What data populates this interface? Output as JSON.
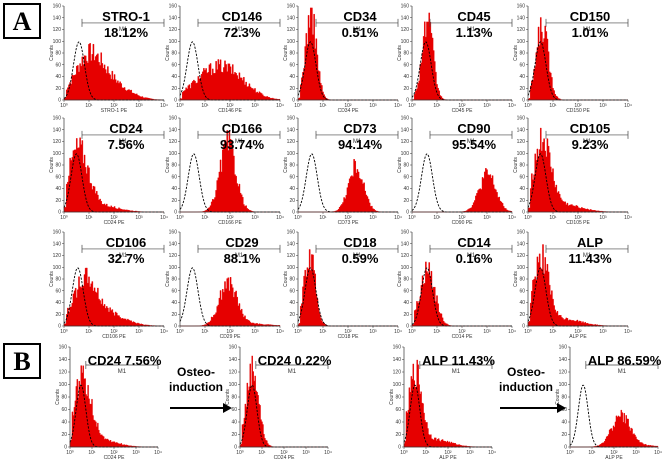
{
  "figure": {
    "panel_a_label": "A",
    "panel_b_label": "B",
    "gate_label": "M1",
    "colors": {
      "sample_fill": "#e60000",
      "control_line": "#000000",
      "gate_line": "#444444"
    }
  },
  "chart_data": [
    {
      "type": "histogram-grid",
      "panel": "A",
      "description": "Flow cytometry histograms, marker (red fill) vs isotype control (dashed line), 3 rows x 5 columns",
      "x_scale": "log",
      "xlim": [
        1,
        10000
      ],
      "x_ticks": [
        "10⁰",
        "10¹",
        "10²",
        "10³",
        "10⁴"
      ],
      "y_ticks": [
        "0",
        "20",
        "40",
        "60",
        "80",
        "100",
        "120",
        "140",
        "160"
      ],
      "ylabel": "Counts",
      "plots": [
        {
          "marker": "STRO-1",
          "pct": "18.12%",
          "xlabel": "STRO-1 PE",
          "peak_log": 0.95,
          "peak_width": 0.55,
          "peak_height": 0.42,
          "ctrl_log": 0.6,
          "tail": 0.4
        },
        {
          "marker": "CD146",
          "pct": "72.3%",
          "xlabel": "CD146 PE",
          "peak_log": 1.3,
          "peak_width": 0.8,
          "peak_height": 0.28,
          "ctrl_log": 0.5,
          "tail": 0.5
        },
        {
          "marker": "CD34",
          "pct": "0.51%",
          "xlabel": "CD34 PE",
          "peak_log": 0.5,
          "peak_width": 0.22,
          "peak_height": 0.92,
          "ctrl_log": 0.5,
          "tail": 0.0
        },
        {
          "marker": "CD45",
          "pct": "1.13%",
          "xlabel": "CD45 PE",
          "peak_log": 0.6,
          "peak_width": 0.22,
          "peak_height": 0.82,
          "ctrl_log": 0.55,
          "tail": 0.0
        },
        {
          "marker": "CD150",
          "pct": "1.01%",
          "xlabel": "CD150 PE",
          "peak_log": 0.55,
          "peak_width": 0.24,
          "peak_height": 0.78,
          "ctrl_log": 0.5,
          "tail": 0.0
        },
        {
          "marker": "CD24",
          "pct": "7.56%",
          "xlabel": "CD24 PE",
          "peak_log": 0.55,
          "peak_width": 0.4,
          "peak_height": 0.65,
          "ctrl_log": 0.5,
          "tail": 0.1
        },
        {
          "marker": "CD166",
          "pct": "93.74%",
          "xlabel": "CD166 PE",
          "peak_log": 1.9,
          "peak_width": 0.32,
          "peak_height": 0.72,
          "ctrl_log": 0.55,
          "tail": 0.0
        },
        {
          "marker": "CD73",
          "pct": "94.14%",
          "xlabel": "CD73 PE",
          "peak_log": 2.3,
          "peak_width": 0.3,
          "peak_height": 0.48,
          "ctrl_log": 0.55,
          "tail": 0.0
        },
        {
          "marker": "CD90",
          "pct": "95.54%",
          "xlabel": "CD90 PE",
          "peak_log": 3.0,
          "peak_width": 0.33,
          "peak_height": 0.4,
          "ctrl_log": 0.6,
          "tail": 0.0
        },
        {
          "marker": "CD105",
          "pct": "9.23%",
          "xlabel": "CD105 PE",
          "peak_log": 0.55,
          "peak_width": 0.35,
          "peak_height": 0.72,
          "ctrl_log": 0.5,
          "tail": 0.1
        },
        {
          "marker": "CD106",
          "pct": "32.7%",
          "xlabel": "CD106 PE",
          "peak_log": 0.8,
          "peak_width": 0.45,
          "peak_height": 0.45,
          "ctrl_log": 0.55,
          "tail": 0.3
        },
        {
          "marker": "CD29",
          "pct": "88.1%",
          "xlabel": "CD29 PE",
          "peak_log": 1.9,
          "peak_width": 0.35,
          "peak_height": 0.45,
          "ctrl_log": 0.5,
          "tail": 0.05
        },
        {
          "marker": "CD18",
          "pct": "0.59%",
          "xlabel": "CD18 PE",
          "peak_log": 0.45,
          "peak_width": 0.22,
          "peak_height": 0.75,
          "ctrl_log": 0.5,
          "tail": 0.0
        },
        {
          "marker": "CD14",
          "pct": "0.16%",
          "xlabel": "CD14 PE",
          "peak_log": 0.6,
          "peak_width": 0.3,
          "peak_height": 0.6,
          "ctrl_log": 0.6,
          "tail": 0.0
        },
        {
          "marker": "ALP",
          "pct": "11.43%",
          "xlabel": "ALP PE",
          "peak_log": 0.5,
          "peak_width": 0.3,
          "peak_height": 0.72,
          "ctrl_log": 0.5,
          "tail": 0.1
        }
      ]
    },
    {
      "type": "histogram-row",
      "panel": "B",
      "x_scale": "log",
      "xlim": [
        1,
        10000
      ],
      "x_ticks": [
        "10⁰",
        "10¹",
        "10²",
        "10³",
        "10⁴"
      ],
      "y_ticks": [
        "0",
        "20",
        "40",
        "60",
        "80",
        "100",
        "120",
        "140",
        "160"
      ],
      "ylabel": "Counts",
      "arrow_label_line1": "Osteo-",
      "arrow_label_line2": "induction",
      "plots": [
        {
          "title": "CD24 7.56%",
          "xlabel": "CD24 PE",
          "peak_log": 0.55,
          "peak_width": 0.4,
          "peak_height": 0.65,
          "ctrl_log": 0.5,
          "tail": 0.1
        },
        {
          "title": "CD24 0.22%",
          "xlabel": "CD24 PE",
          "peak_log": 0.55,
          "peak_width": 0.28,
          "peak_height": 0.78,
          "ctrl_log": 0.55,
          "tail": 0.0
        },
        {
          "title": "ALP 11.43%",
          "xlabel": "ALP PE",
          "peak_log": 0.5,
          "peak_width": 0.3,
          "peak_height": 0.72,
          "ctrl_log": 0.5,
          "tail": 0.1
        },
        {
          "title": "ALP  86.59%",
          "xlabel": "ALP PE",
          "peak_log": 2.3,
          "peak_width": 0.42,
          "peak_height": 0.3,
          "ctrl_log": 0.6,
          "tail": 0.05
        }
      ]
    }
  ]
}
